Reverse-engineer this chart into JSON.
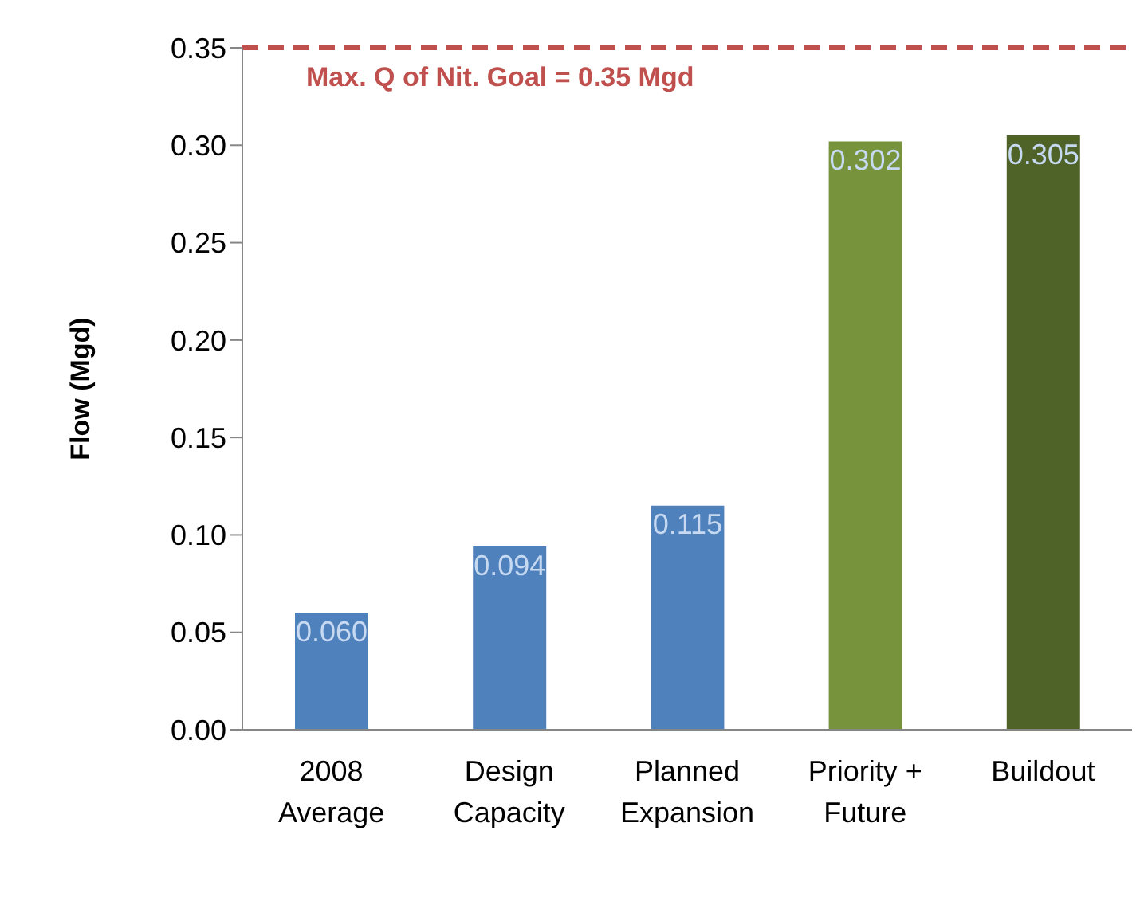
{
  "chart_data": {
    "type": "bar",
    "ylabel": "Flow (Mgd)",
    "categories": [
      "2008 Average",
      "Design Capacity",
      "Planned Expansion",
      "Priority + Future",
      "Buildout"
    ],
    "values": [
      0.06,
      0.094,
      0.115,
      0.302,
      0.305
    ],
    "value_labels": [
      "0.060",
      "0.094",
      "0.115",
      "0.302",
      "0.305"
    ],
    "colors": [
      "#4f81bd",
      "#4f81bd",
      "#4f81bd",
      "#77933c",
      "#4f6228"
    ],
    "ylim": [
      0,
      0.35
    ],
    "yticks": [
      {
        "value": 0,
        "label": "0.00"
      },
      {
        "value": 0.05,
        "label": "0.05"
      },
      {
        "value": 0.1,
        "label": "0.10"
      },
      {
        "value": 0.15,
        "label": "0.15"
      },
      {
        "value": 0.2,
        "label": "0.20"
      },
      {
        "value": 0.25,
        "label": "0.25"
      },
      {
        "value": 0.3,
        "label": "0.30"
      },
      {
        "value": 0.35,
        "label": "0.35"
      }
    ],
    "ref_lines": [
      {
        "axis": "y",
        "value": 0.35,
        "label": "Max. Q of Nit. Goal = 0.35 Mgd",
        "color": "#c0504d",
        "line_style": "dashed"
      }
    ],
    "grid": false,
    "legend": false
  }
}
